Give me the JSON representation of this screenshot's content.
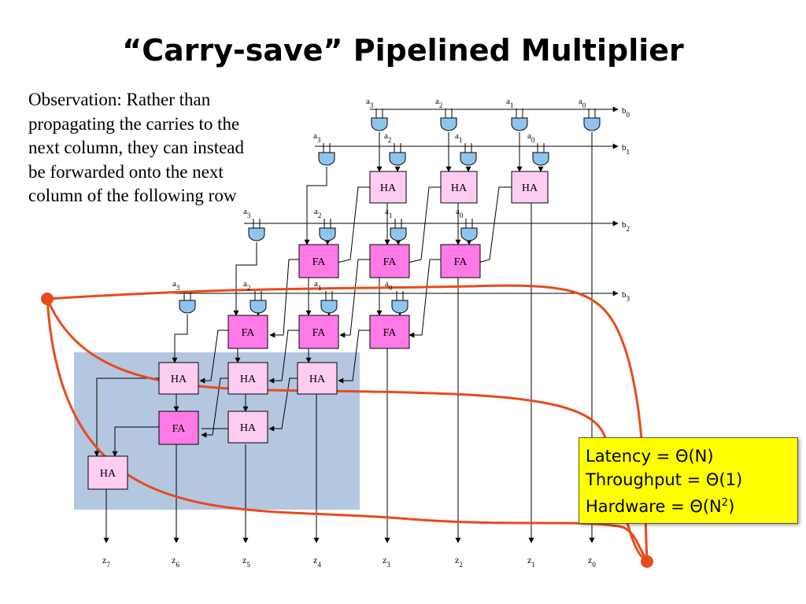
{
  "title": "“Carry-save” Pipelined Multiplier",
  "observation": "Observation: Rather than propagating the carries to the next column, they can instead be forwarded onto the next column of the following row",
  "stats": {
    "latency": "Latency = Θ(N)",
    "throughput": "Throughput = Θ(1)",
    "hardware_base": "Hardware = Θ(N",
    "hardware_exp": "2",
    "hardware_close": ")"
  },
  "b_labels": [
    "b",
    "b",
    "b",
    "b"
  ],
  "b_subs": [
    "0",
    "1",
    "2",
    "3"
  ],
  "a_labels": [
    "a",
    "a",
    "a",
    "a"
  ],
  "a_subs": [
    "3",
    "2",
    "1",
    "0"
  ],
  "z_labels": [
    "z",
    "z",
    "z",
    "z",
    "z",
    "z",
    "z",
    "z"
  ],
  "z_subs": [
    "7",
    "6",
    "5",
    "4",
    "3",
    "2",
    "1",
    "0"
  ],
  "cells": {
    "ha": "HA",
    "fa": "FA"
  },
  "colors": {
    "gate": "#8ec5ee",
    "ha": "#ffccf2",
    "fa": "#ff7ae6",
    "highlight": "#b3c7e0",
    "curve": "#e84b1c",
    "stats_bg": "#ffff00"
  }
}
